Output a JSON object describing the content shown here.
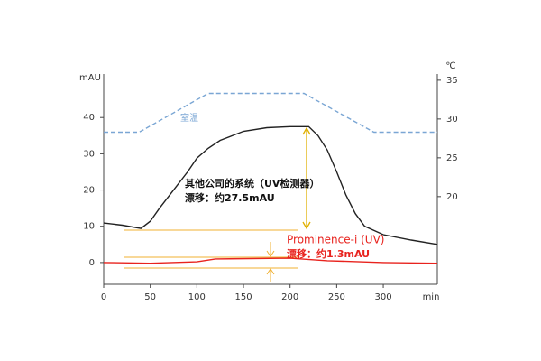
{
  "chart_data": {
    "type": "line",
    "y_label": "mAU",
    "y2_label": "℃",
    "x_label": "min",
    "xlim": [
      0,
      358
    ],
    "xticks": [
      0,
      50,
      100,
      150,
      200,
      250,
      300
    ],
    "ylim": [
      -6,
      52
    ],
    "yticks": [
      0,
      10,
      20,
      30,
      40
    ],
    "y2lim": [
      8.7,
      35.8
    ],
    "y2ticks": [
      20,
      25,
      30,
      35
    ],
    "series": [
      {
        "color": "#222222",
        "dashed": false,
        "x": [
          0,
          20,
          40,
          50,
          60,
          75,
          90,
          100,
          112,
          125,
          150,
          175,
          200,
          220,
          230,
          240,
          250,
          260,
          270,
          280,
          300,
          330,
          358
        ],
        "values": [
          10.9,
          10.3,
          9.4,
          11.4,
          15,
          20,
          25,
          28.8,
          31.5,
          33.7,
          36.2,
          37.2,
          37.5,
          37.5,
          35,
          31,
          25,
          18.6,
          13.5,
          10,
          7.7,
          6.2,
          5
        ]
      },
      {
        "color": "#e8231e",
        "dashed": false,
        "x": [
          0,
          50,
          100,
          120,
          200,
          240,
          300,
          358
        ],
        "values": [
          0,
          -0.2,
          0.2,
          1,
          1.2,
          0.5,
          0,
          -0.2
        ]
      },
      {
        "color": "#7aa6d4",
        "dashed": true,
        "axis": "y2",
        "x": [
          0,
          38,
          112,
          215,
          290,
          358
        ],
        "values": [
          28.3,
          28.3,
          33.3,
          33.3,
          28.3,
          28.3
        ]
      }
    ],
    "annotations": [
      {
        "text": "室温",
        "color": "#7aa6d4"
      },
      {
        "text": "其他公司的系统（UV检测器）",
        "color": "#111111"
      },
      {
        "text": "漂移：约27.5mAU",
        "color": "#111111"
      },
      {
        "text": "Prominence-i (UV)",
        "color": "#e8231e"
      },
      {
        "text": "漂移：约1.3mAU",
        "color": "#e8231e"
      }
    ]
  }
}
